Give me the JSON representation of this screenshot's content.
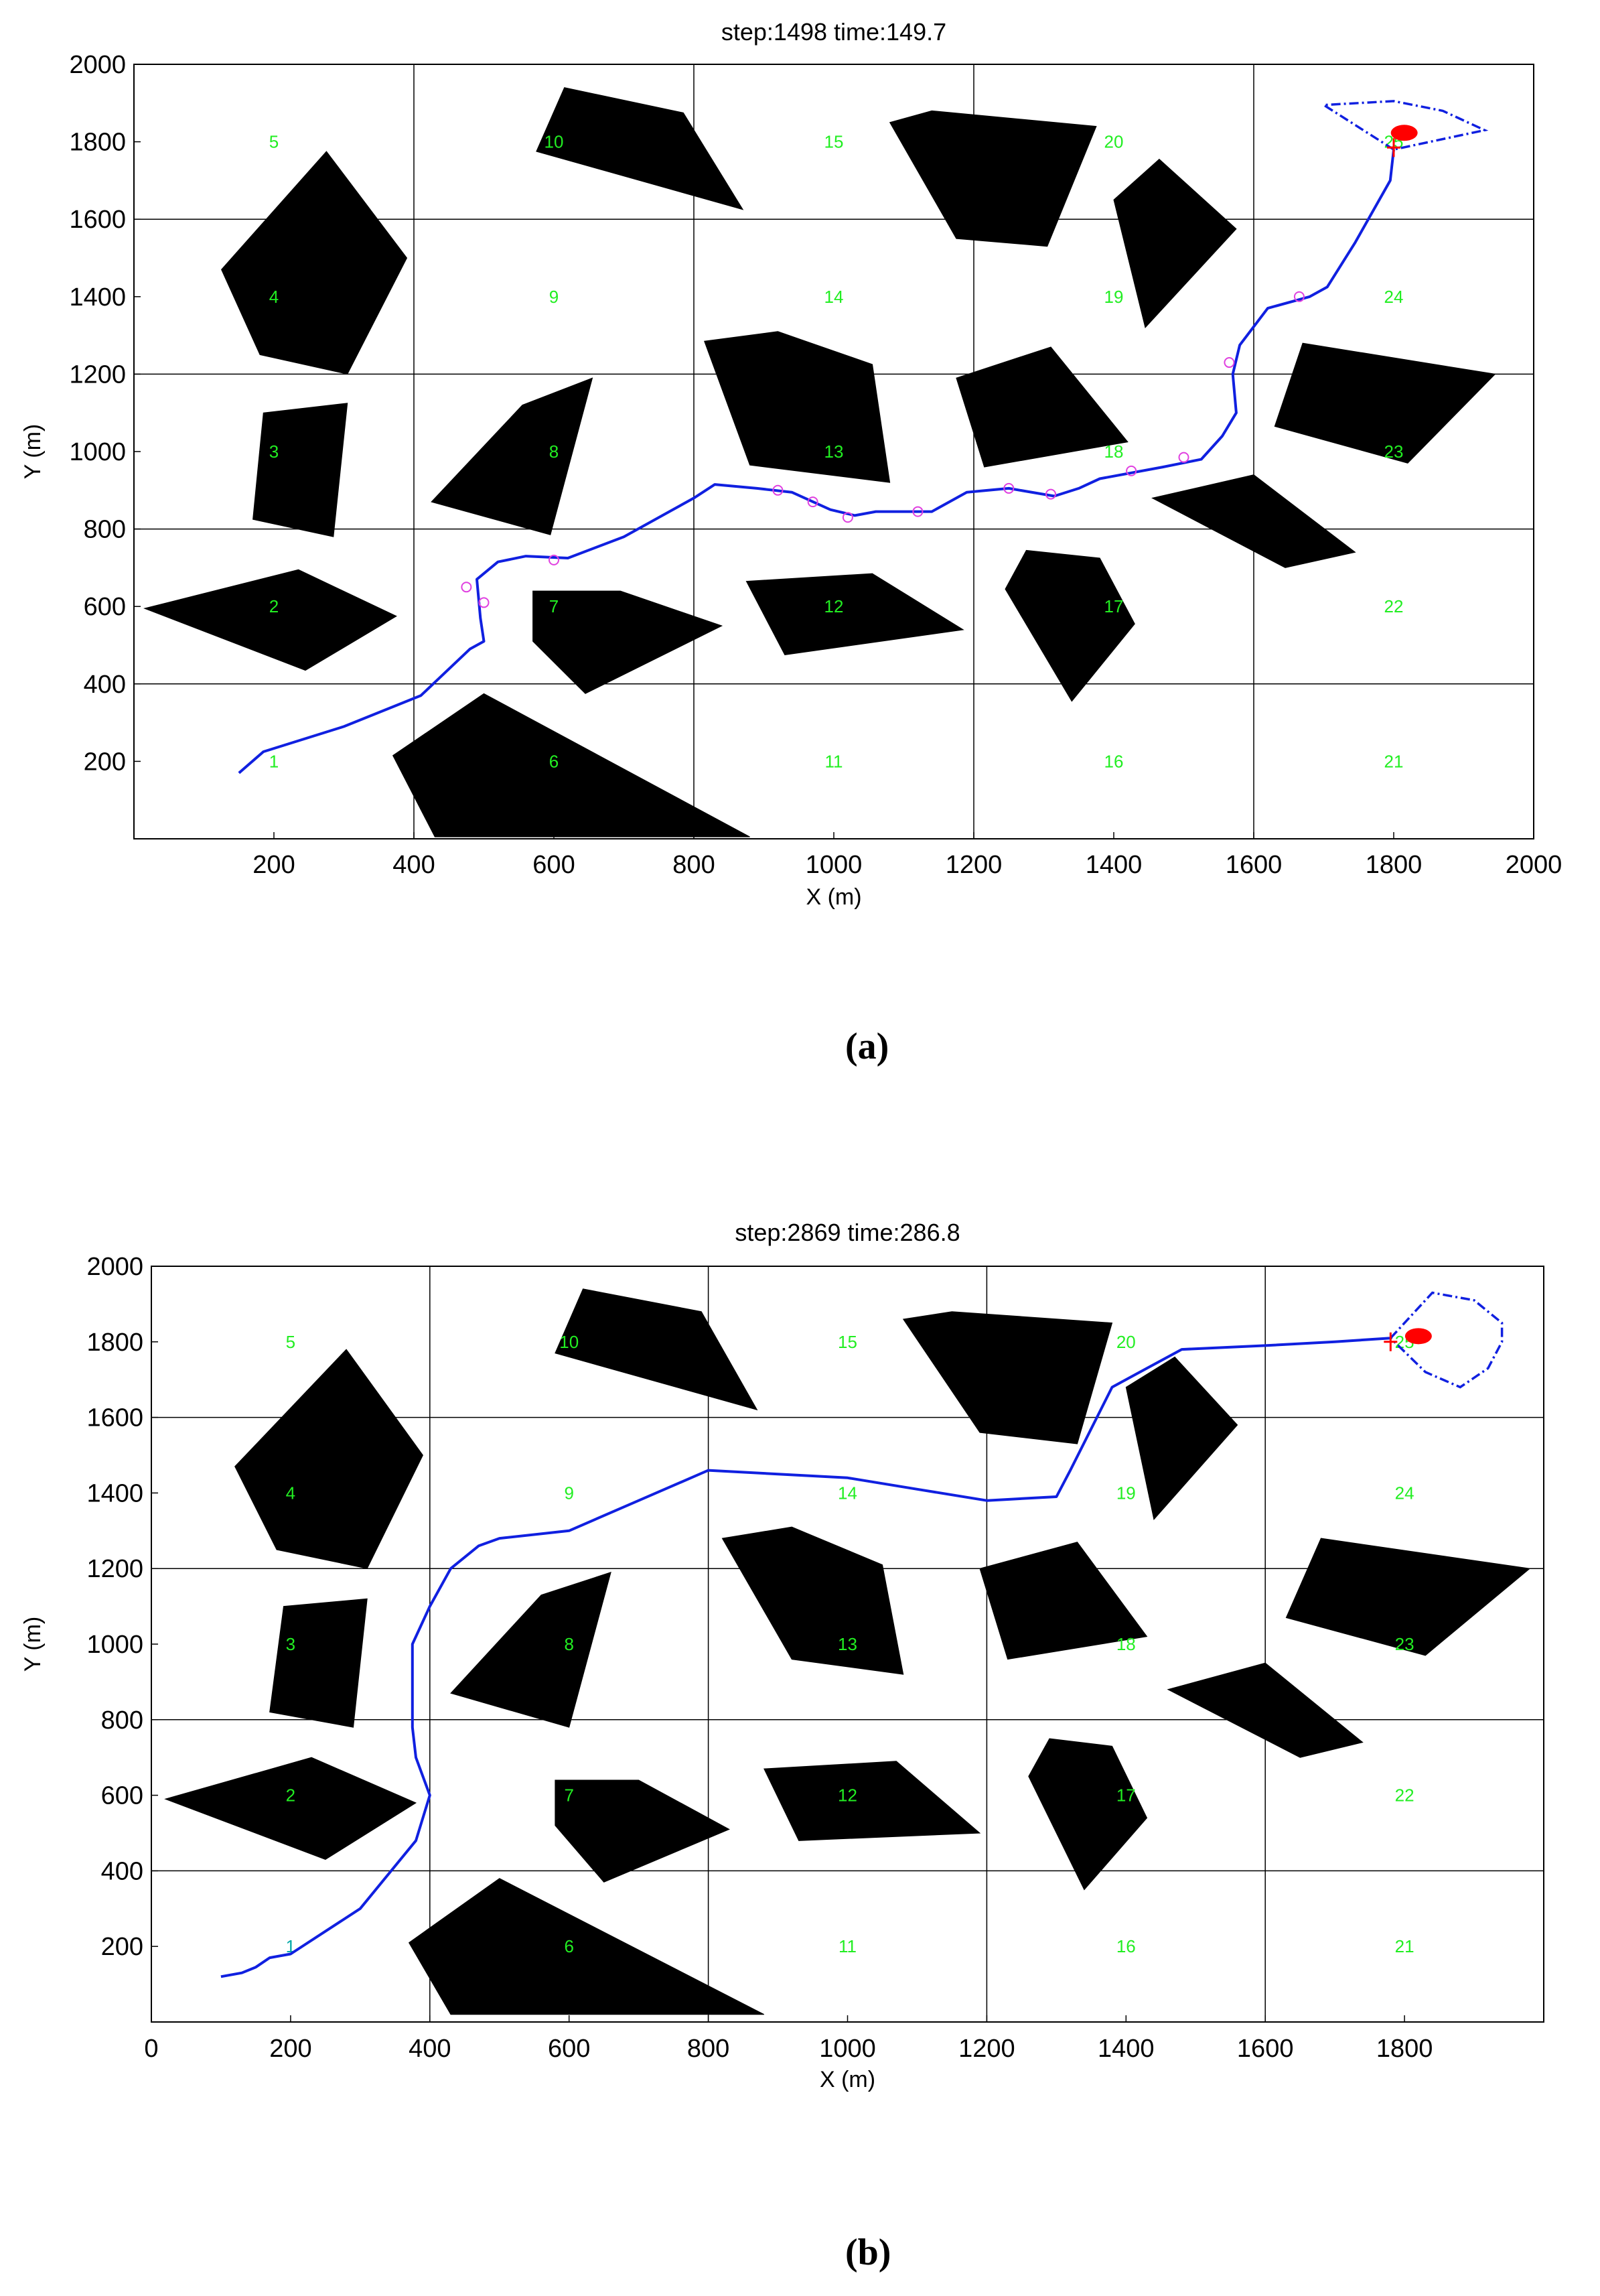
{
  "panel_labels": [
    "(a)",
    "(b)"
  ],
  "chart_data": [
    {
      "type": "scatter",
      "title": "step:1498 time:149.7",
      "xlabel": "X (m)",
      "ylabel": "Y (m)",
      "xlim": [
        0,
        2000
      ],
      "ylim": [
        0,
        2000
      ],
      "xticks": [
        200,
        400,
        600,
        800,
        1000,
        1200,
        1400,
        1600,
        1800,
        2000
      ],
      "yticks": [
        200,
        400,
        600,
        800,
        1000,
        1200,
        1400,
        1600,
        1800,
        2000
      ],
      "grid": {
        "x": [
          400,
          800,
          1200,
          1600
        ],
        "y": [
          400,
          800,
          1200,
          1600
        ]
      },
      "cell_labels": [
        {
          "text": "1",
          "x": 200,
          "y": 200
        },
        {
          "text": "2",
          "x": 200,
          "y": 600
        },
        {
          "text": "3",
          "x": 200,
          "y": 1000
        },
        {
          "text": "4",
          "x": 200,
          "y": 1400
        },
        {
          "text": "5",
          "x": 200,
          "y": 1800
        },
        {
          "text": "6",
          "x": 600,
          "y": 200
        },
        {
          "text": "7",
          "x": 600,
          "y": 600
        },
        {
          "text": "8",
          "x": 600,
          "y": 1000
        },
        {
          "text": "9",
          "x": 600,
          "y": 1400
        },
        {
          "text": "10",
          "x": 600,
          "y": 1800
        },
        {
          "text": "11",
          "x": 1000,
          "y": 200
        },
        {
          "text": "12",
          "x": 1000,
          "y": 600
        },
        {
          "text": "13",
          "x": 1000,
          "y": 1000
        },
        {
          "text": "14",
          "x": 1000,
          "y": 1400
        },
        {
          "text": "15",
          "x": 1000,
          "y": 1800
        },
        {
          "text": "16",
          "x": 1400,
          "y": 200
        },
        {
          "text": "17",
          "x": 1400,
          "y": 600
        },
        {
          "text": "18",
          "x": 1400,
          "y": 1000
        },
        {
          "text": "19",
          "x": 1400,
          "y": 1400
        },
        {
          "text": "20",
          "x": 1400,
          "y": 1800
        },
        {
          "text": "21",
          "x": 1800,
          "y": 200
        },
        {
          "text": "22",
          "x": 1800,
          "y": 600
        },
        {
          "text": "23",
          "x": 1800,
          "y": 1000
        },
        {
          "text": "24",
          "x": 1800,
          "y": 1400
        },
        {
          "text": "25",
          "x": 1800,
          "y": 1800
        }
      ],
      "obstacles": [
        [
          [
            15,
            595
          ],
          [
            235,
            695
          ],
          [
            375,
            575
          ],
          [
            245,
            435
          ]
        ],
        [
          [
            185,
            1100
          ],
          [
            305,
            1125
          ],
          [
            285,
            780
          ],
          [
            170,
            825
          ]
        ],
        [
          [
            125,
            1470
          ],
          [
            275,
            1775
          ],
          [
            390,
            1500
          ],
          [
            305,
            1200
          ],
          [
            180,
            1250
          ]
        ],
        [
          [
            370,
            215
          ],
          [
            500,
            375
          ],
          [
            880,
            5
          ],
          [
            430,
            5
          ]
        ],
        [
          [
            575,
            1775
          ],
          [
            615,
            1940
          ],
          [
            785,
            1875
          ],
          [
            870,
            1625
          ]
        ],
        [
          [
            570,
            640
          ],
          [
            695,
            640
          ],
          [
            840,
            550
          ],
          [
            645,
            375
          ],
          [
            570,
            510
          ]
        ],
        [
          [
            425,
            870
          ],
          [
            555,
            1120
          ],
          [
            655,
            1190
          ],
          [
            595,
            785
          ]
        ],
        [
          [
            815,
            1285
          ],
          [
            920,
            1310
          ],
          [
            1055,
            1225
          ],
          [
            1080,
            920
          ],
          [
            880,
            965
          ]
        ],
        [
          [
            875,
            665
          ],
          [
            1055,
            685
          ],
          [
            1185,
            540
          ],
          [
            930,
            475
          ]
        ],
        [
          [
            1080,
            1850
          ],
          [
            1140,
            1880
          ],
          [
            1375,
            1840
          ],
          [
            1305,
            1530
          ],
          [
            1175,
            1550
          ]
        ],
        [
          [
            1175,
            1190
          ],
          [
            1310,
            1270
          ],
          [
            1420,
            1025
          ],
          [
            1215,
            960
          ]
        ],
        [
          [
            1245,
            645
          ],
          [
            1275,
            745
          ],
          [
            1380,
            725
          ],
          [
            1430,
            555
          ],
          [
            1340,
            355
          ]
        ],
        [
          [
            1400,
            1650
          ],
          [
            1465,
            1755
          ],
          [
            1575,
            1575
          ],
          [
            1445,
            1320
          ]
        ],
        [
          [
            1455,
            880
          ],
          [
            1600,
            940
          ],
          [
            1745,
            740
          ],
          [
            1645,
            700
          ]
        ],
        [
          [
            1630,
            1065
          ],
          [
            1670,
            1280
          ],
          [
            1945,
            1200
          ],
          [
            1820,
            970
          ]
        ]
      ],
      "path": [
        [
          150,
          170
        ],
        [
          185,
          225
        ],
        [
          300,
          290
        ],
        [
          410,
          370
        ],
        [
          480,
          490
        ],
        [
          500,
          510
        ],
        [
          495,
          570
        ],
        [
          490,
          670
        ],
        [
          520,
          715
        ],
        [
          560,
          730
        ],
        [
          620,
          725
        ],
        [
          700,
          780
        ],
        [
          800,
          880
        ],
        [
          830,
          915
        ],
        [
          890,
          905
        ],
        [
          940,
          895
        ],
        [
          995,
          850
        ],
        [
          1030,
          835
        ],
        [
          1060,
          845
        ],
        [
          1140,
          845
        ],
        [
          1190,
          895
        ],
        [
          1250,
          905
        ],
        [
          1315,
          885
        ],
        [
          1350,
          905
        ],
        [
          1380,
          930
        ],
        [
          1470,
          960
        ],
        [
          1525,
          980
        ],
        [
          1555,
          1040
        ],
        [
          1575,
          1100
        ],
        [
          1570,
          1200
        ],
        [
          1580,
          1275
        ],
        [
          1620,
          1370
        ],
        [
          1680,
          1400
        ],
        [
          1705,
          1425
        ],
        [
          1745,
          1540
        ],
        [
          1795,
          1700
        ],
        [
          1800,
          1780
        ]
      ],
      "path_markers": [
        [
          475,
          650
        ],
        [
          500,
          610
        ],
        [
          600,
          720
        ],
        [
          920,
          900
        ],
        [
          970,
          870
        ],
        [
          1020,
          830
        ],
        [
          1120,
          845
        ],
        [
          1250,
          905
        ],
        [
          1310,
          890
        ],
        [
          1425,
          950
        ],
        [
          1500,
          985
        ],
        [
          1565,
          1230
        ],
        [
          1665,
          1400
        ]
      ],
      "sensor_fan": [
        [
          1800,
          1780
        ],
        [
          1700,
          1895
        ],
        [
          1800,
          1905
        ],
        [
          1870,
          1880
        ],
        [
          1930,
          1830
        ],
        [
          1800,
          1780
        ]
      ],
      "vehicle_cross": [
        1800,
        1785
      ],
      "target_ellipse": [
        1815,
        1823
      ]
    },
    {
      "type": "scatter",
      "title": "step:2869 time:286.8",
      "xlabel": "X (m)",
      "ylabel": "Y (m)",
      "xlim": [
        0,
        2000
      ],
      "ylim": [
        0,
        2000
      ],
      "xticks": [
        0,
        200,
        400,
        600,
        800,
        1000,
        1200,
        1400,
        1600,
        1800
      ],
      "yticks": [
        200,
        400,
        600,
        800,
        1000,
        1200,
        1400,
        1600,
        1800,
        2000
      ],
      "grid": {
        "x": [
          400,
          800,
          1200,
          1600
        ],
        "y": [
          400,
          800,
          1200,
          1600
        ]
      },
      "cell_labels": [
        {
          "text": "1",
          "x": 200,
          "y": 200
        },
        {
          "text": "2",
          "x": 200,
          "y": 600
        },
        {
          "text": "3",
          "x": 200,
          "y": 1000
        },
        {
          "text": "4",
          "x": 200,
          "y": 1400
        },
        {
          "text": "5",
          "x": 200,
          "y": 1800
        },
        {
          "text": "6",
          "x": 600,
          "y": 200
        },
        {
          "text": "7",
          "x": 600,
          "y": 600
        },
        {
          "text": "8",
          "x": 600,
          "y": 1000
        },
        {
          "text": "9",
          "x": 600,
          "y": 1400
        },
        {
          "text": "10",
          "x": 600,
          "y": 1800
        },
        {
          "text": "11",
          "x": 1000,
          "y": 200
        },
        {
          "text": "12",
          "x": 1000,
          "y": 600
        },
        {
          "text": "13",
          "x": 1000,
          "y": 1000
        },
        {
          "text": "14",
          "x": 1000,
          "y": 1400
        },
        {
          "text": "15",
          "x": 1000,
          "y": 1800
        },
        {
          "text": "16",
          "x": 1400,
          "y": 200
        },
        {
          "text": "17",
          "x": 1400,
          "y": 600
        },
        {
          "text": "18",
          "x": 1400,
          "y": 1000
        },
        {
          "text": "19",
          "x": 1400,
          "y": 1400
        },
        {
          "text": "20",
          "x": 1400,
          "y": 1800
        },
        {
          "text": "21",
          "x": 1800,
          "y": 200
        },
        {
          "text": "22",
          "x": 1800,
          "y": 600
        },
        {
          "text": "23",
          "x": 1800,
          "y": 1000
        },
        {
          "text": "24",
          "x": 1800,
          "y": 1400
        },
        {
          "text": "25",
          "x": 1800,
          "y": 1800
        }
      ],
      "obstacles": [
        [
          [
            20,
            590
          ],
          [
            230,
            700
          ],
          [
            380,
            580
          ],
          [
            250,
            430
          ]
        ],
        [
          [
            190,
            1100
          ],
          [
            310,
            1120
          ],
          [
            290,
            780
          ],
          [
            170,
            820
          ]
        ],
        [
          [
            120,
            1470
          ],
          [
            280,
            1780
          ],
          [
            390,
            1500
          ],
          [
            310,
            1200
          ],
          [
            180,
            1250
          ]
        ],
        [
          [
            370,
            210
          ],
          [
            500,
            380
          ],
          [
            880,
            20
          ],
          [
            430,
            20
          ]
        ],
        [
          [
            580,
            1770
          ],
          [
            620,
            1940
          ],
          [
            790,
            1880
          ],
          [
            870,
            1620
          ]
        ],
        [
          [
            580,
            640
          ],
          [
            700,
            640
          ],
          [
            830,
            510
          ],
          [
            650,
            370
          ],
          [
            580,
            520
          ]
        ],
        [
          [
            430,
            870
          ],
          [
            560,
            1130
          ],
          [
            660,
            1190
          ],
          [
            600,
            780
          ]
        ],
        [
          [
            820,
            1280
          ],
          [
            920,
            1310
          ],
          [
            1050,
            1210
          ],
          [
            1080,
            920
          ],
          [
            920,
            960
          ]
        ],
        [
          [
            880,
            670
          ],
          [
            1070,
            690
          ],
          [
            1190,
            500
          ],
          [
            930,
            480
          ]
        ],
        [
          [
            1080,
            1860
          ],
          [
            1150,
            1880
          ],
          [
            1380,
            1850
          ],
          [
            1330,
            1530
          ],
          [
            1190,
            1560
          ]
        ],
        [
          [
            1190,
            1200
          ],
          [
            1330,
            1270
          ],
          [
            1430,
            1020
          ],
          [
            1230,
            960
          ]
        ],
        [
          [
            1260,
            650
          ],
          [
            1290,
            750
          ],
          [
            1380,
            730
          ],
          [
            1430,
            540
          ],
          [
            1340,
            350
          ]
        ],
        [
          [
            1400,
            1680
          ],
          [
            1470,
            1760
          ],
          [
            1560,
            1580
          ],
          [
            1440,
            1330
          ]
        ],
        [
          [
            1460,
            880
          ],
          [
            1600,
            950
          ],
          [
            1740,
            740
          ],
          [
            1650,
            700
          ]
        ],
        [
          [
            1630,
            1070
          ],
          [
            1680,
            1280
          ],
          [
            1980,
            1200
          ],
          [
            1830,
            970
          ]
        ]
      ],
      "path": [
        [
          100,
          120
        ],
        [
          130,
          130
        ],
        [
          150,
          145
        ],
        [
          170,
          170
        ],
        [
          200,
          180
        ],
        [
          300,
          300
        ],
        [
          380,
          480
        ],
        [
          400,
          600
        ],
        [
          380,
          700
        ],
        [
          375,
          780
        ],
        [
          375,
          1000
        ],
        [
          400,
          1100
        ],
        [
          430,
          1200
        ],
        [
          470,
          1260
        ],
        [
          500,
          1280
        ],
        [
          600,
          1300
        ],
        [
          700,
          1380
        ],
        [
          800,
          1460
        ],
        [
          900,
          1450
        ],
        [
          1000,
          1440
        ],
        [
          1100,
          1410
        ],
        [
          1200,
          1380
        ],
        [
          1300,
          1390
        ],
        [
          1320,
          1460
        ],
        [
          1380,
          1680
        ],
        [
          1420,
          1720
        ],
        [
          1480,
          1780
        ],
        [
          1600,
          1790
        ],
        [
          1700,
          1800
        ],
        [
          1780,
          1810
        ]
      ],
      "path_markers": [],
      "sensor_fan": [
        [
          1780,
          1810
        ],
        [
          1840,
          1930
        ],
        [
          1900,
          1910
        ],
        [
          1940,
          1850
        ],
        [
          1940,
          1800
        ],
        [
          1920,
          1730
        ],
        [
          1880,
          1680
        ],
        [
          1830,
          1720
        ],
        [
          1780,
          1810
        ]
      ],
      "vehicle_cross": [
        1780,
        1800
      ],
      "target_ellipse": [
        1820,
        1815
      ]
    }
  ]
}
